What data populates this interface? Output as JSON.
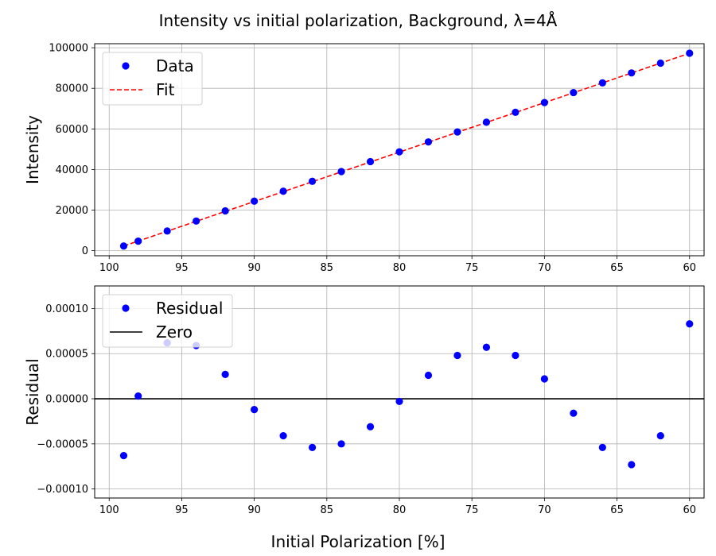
{
  "figure": {
    "title": "Intensity vs initial polarization, Background, λ=4Å",
    "shared_xlabel": "Initial Polarization [%]"
  },
  "colors": {
    "data": "#0000ff",
    "fit": "#ff0000",
    "zero": "#000000",
    "grid": "#b0b0b0"
  },
  "chart_data": [
    {
      "type": "scatter",
      "ylabel": "Intensity",
      "xlim": [
        101,
        59
      ],
      "ylim": [
        -2500,
        102000
      ],
      "x_ticks": [
        100,
        95,
        90,
        85,
        80,
        75,
        70,
        65,
        60
      ],
      "y_ticks": [
        0,
        20000,
        40000,
        60000,
        80000,
        100000
      ],
      "grid": true,
      "legend": "top-left",
      "legend_labels": [
        "Data",
        "Fit"
      ],
      "series": [
        {
          "name": "Data",
          "style": "points",
          "x": [
            99,
            98,
            96,
            94,
            92,
            90,
            88,
            86,
            84,
            82,
            80,
            78,
            76,
            74,
            72,
            70,
            68,
            66,
            64,
            62,
            60
          ],
          "y": [
            2300,
            4700,
            9700,
            14600,
            19600,
            24400,
            29300,
            34200,
            39000,
            43900,
            48700,
            53600,
            58500,
            63300,
            68200,
            73000,
            77900,
            82700,
            87600,
            92400,
            97300
          ]
        },
        {
          "name": "Fit",
          "style": "dashed-line",
          "x": [
            99,
            60
          ],
          "y": [
            2300,
            97300
          ]
        }
      ]
    },
    {
      "type": "scatter",
      "ylabel": "Residual",
      "xlim": [
        101,
        59
      ],
      "ylim": [
        -0.00011,
        0.000125
      ],
      "x_ticks": [
        100,
        95,
        90,
        85,
        80,
        75,
        70,
        65,
        60
      ],
      "y_ticks": [
        -0.0001,
        -5e-05,
        0.0,
        5e-05,
        0.0001
      ],
      "y_tick_labels": [
        "−0.00010",
        "−0.00005",
        "0.00000",
        "0.00005",
        "0.00010"
      ],
      "grid": true,
      "legend": "top-left",
      "legend_labels": [
        "Residual",
        "Zero"
      ],
      "series": [
        {
          "name": "Residual",
          "style": "points",
          "x": [
            99,
            98,
            96,
            94,
            92,
            90,
            88,
            86,
            84,
            82,
            80,
            78,
            76,
            74,
            72,
            70,
            68,
            66,
            64,
            62,
            60
          ],
          "y": [
            -6.3e-05,
            3e-06,
            6.2e-05,
            5.9e-05,
            2.7e-05,
            -1.2e-05,
            -4.1e-05,
            -5.4e-05,
            -5e-05,
            -3.1e-05,
            -3e-06,
            2.6e-05,
            4.8e-05,
            5.7e-05,
            4.8e-05,
            2.2e-05,
            -1.6e-05,
            -5.4e-05,
            -7.3e-05,
            -4.1e-05,
            8.3e-05
          ]
        },
        {
          "name": "Zero",
          "style": "solid-line",
          "y": 0
        }
      ]
    }
  ]
}
